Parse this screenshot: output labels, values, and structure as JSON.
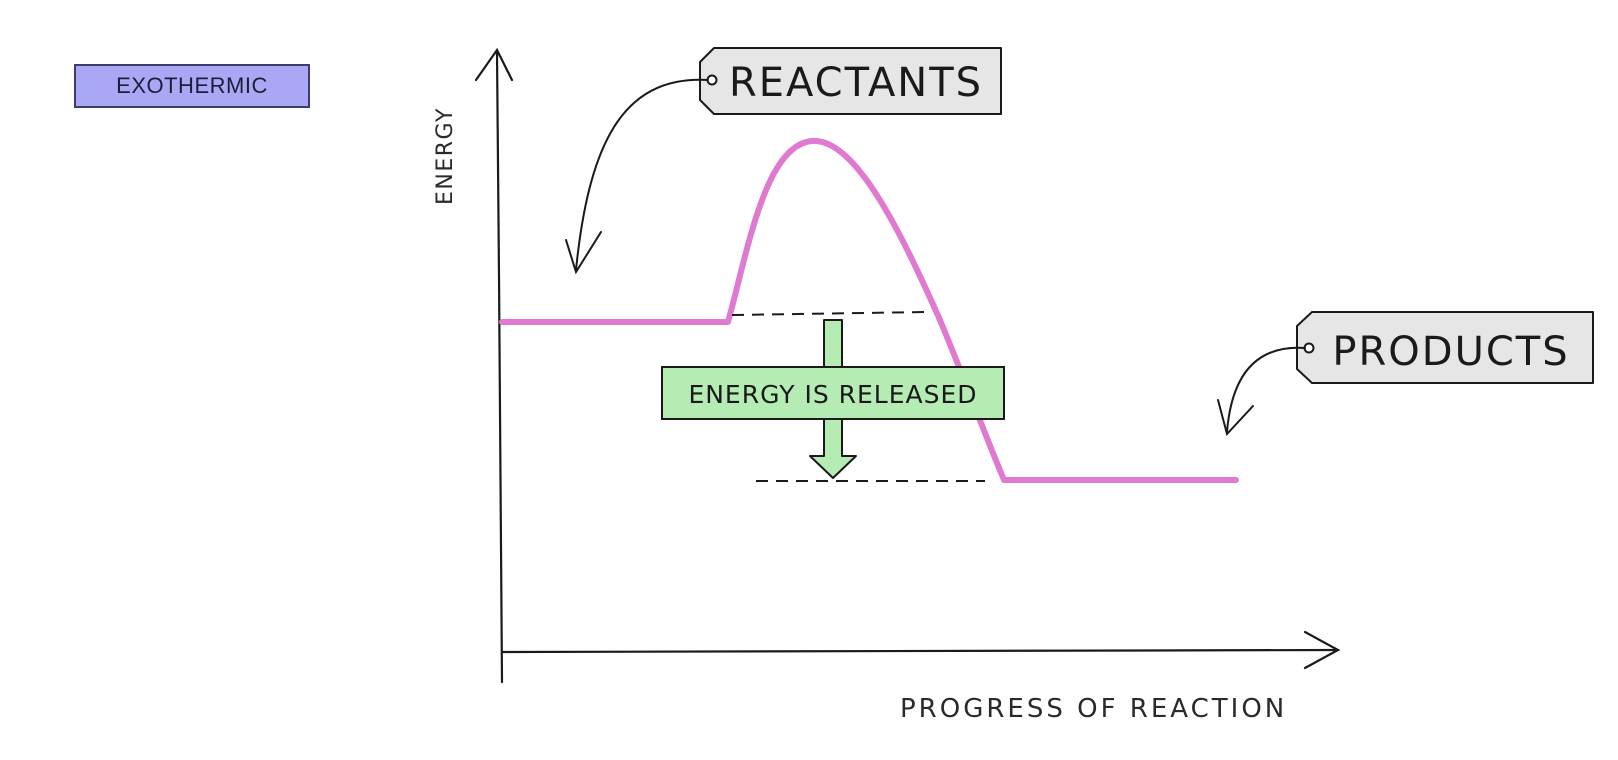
{
  "badge": {
    "label": "EXOTHERMIC"
  },
  "axes": {
    "y_label": "ENERGY",
    "x_label": "PROGRESS OF REACTION"
  },
  "labels": {
    "reactants": "REACTANTS",
    "products": "PRODUCTS",
    "energy_change": "ENERGY IS RELEASED"
  },
  "colors": {
    "curve": "#e07ad0",
    "badge": "#a8a8f4",
    "energy_box": "#b4ecb4",
    "tag_fill": "#e6e6e6",
    "ink": "#1a1a1a"
  }
}
